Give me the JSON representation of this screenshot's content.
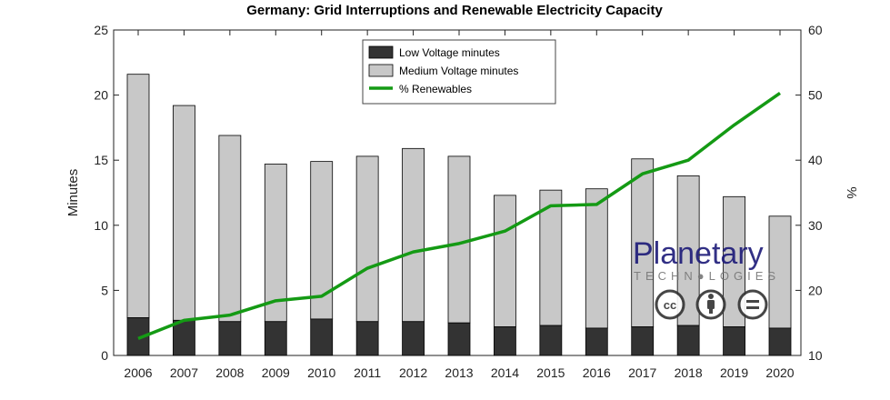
{
  "chart_data": {
    "type": "bar",
    "title": "Germany: Grid Interruptions and Renewable Electricity Capacity",
    "categories": [
      "2006",
      "2007",
      "2008",
      "2009",
      "2010",
      "2011",
      "2012",
      "2013",
      "2014",
      "2015",
      "2016",
      "2017",
      "2018",
      "2019",
      "2020"
    ],
    "stacked": true,
    "series": [
      {
        "name": "Low Voltage minutes",
        "axis": "left",
        "color": "#333333",
        "values": [
          2.9,
          2.7,
          2.6,
          2.6,
          2.8,
          2.6,
          2.6,
          2.5,
          2.2,
          2.3,
          2.1,
          2.2,
          2.3,
          2.2,
          2.1
        ]
      },
      {
        "name": "Medium Voltage minutes",
        "axis": "left",
        "color": "#c8c8c8",
        "values": [
          18.7,
          16.5,
          14.3,
          12.1,
          12.1,
          12.7,
          13.3,
          12.8,
          10.1,
          10.4,
          10.7,
          12.9,
          11.5,
          10.0,
          8.6
        ]
      },
      {
        "name": "% Renewables",
        "axis": "right",
        "type": "line",
        "color": "#149a14",
        "values": [
          12.6,
          15.4,
          16.2,
          18.4,
          19.1,
          23.4,
          25.9,
          27.2,
          29.1,
          33.0,
          33.2,
          37.9,
          40.0,
          45.4,
          50.3
        ]
      }
    ],
    "ylabel": "Minutes",
    "ylim": [
      0,
      25
    ],
    "yticks": [
      0,
      5,
      10,
      15,
      20,
      25
    ],
    "y2label": "%",
    "y2lim": [
      10,
      60
    ],
    "y2ticks": [
      10,
      20,
      30,
      40,
      50,
      60
    ],
    "legend": "top-center"
  },
  "watermark": {
    "title": "Planetary",
    "subtitle": "TECHN●LOGIES",
    "badges": [
      "cc",
      "by",
      "nd"
    ]
  }
}
